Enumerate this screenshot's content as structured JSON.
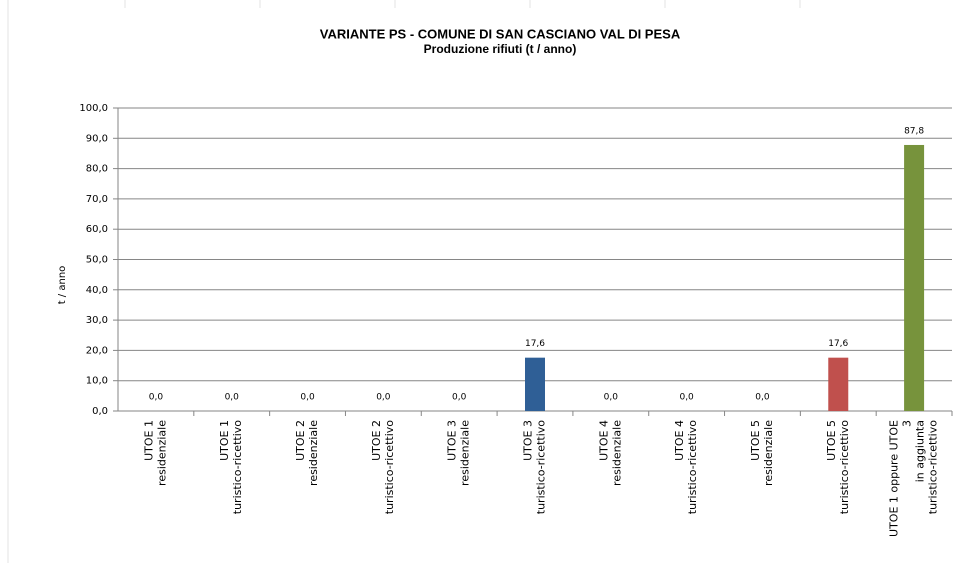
{
  "chart_data": {
    "type": "bar",
    "title": "VARIANTE PS - COMUNE DI SAN CASCIANO VAL DI PESA",
    "subtitle": "Produzione rifiuti  (t / anno)",
    "y_label": "t / anno",
    "categories": [
      [
        "UTOE 1",
        "residenziale"
      ],
      [
        "UTOE 1",
        "turistico-ricettivo"
      ],
      [
        "UTOE 2",
        "residenziale"
      ],
      [
        "UTOE 2",
        "turistico-ricettivo"
      ],
      [
        "UTOE 3",
        "residenziale"
      ],
      [
        "UTOE 3",
        "turistico-ricettivo"
      ],
      [
        "UTOE 4",
        "residenziale"
      ],
      [
        "UTOE 4",
        "turistico-ricettivo"
      ],
      [
        "UTOE 5",
        "residenziale"
      ],
      [
        "UTOE 5",
        "turistico-ricettivo"
      ],
      [
        "UTOE 1 oppure UTOE",
        "3",
        "in aggiunta",
        "turistico-ricettivo"
      ]
    ],
    "values": [
      0,
      0,
      0,
      0,
      0,
      17.6,
      0,
      0,
      0,
      17.6,
      87.8
    ],
    "value_labels": [
      "0,0",
      "0,0",
      "0,0",
      "0,0",
      "0,0",
      "17,6",
      "0,0",
      "0,0",
      "0,0",
      "17,6",
      "87,8"
    ],
    "colors": [
      "#4f81bd",
      "#4f81bd",
      "#4f81bd",
      "#4f81bd",
      "#4f81bd",
      "#2f5f96",
      "#4f81bd",
      "#4f81bd",
      "#4f81bd",
      "#c0504d",
      "#77933c"
    ],
    "ylim": [
      0,
      100
    ],
    "yticks": [
      {
        "value": 0,
        "label": "0,0"
      },
      {
        "value": 10,
        "label": "10,0"
      },
      {
        "value": 20,
        "label": "20,0"
      },
      {
        "value": 30,
        "label": "30,0"
      },
      {
        "value": 40,
        "label": "40,0"
      },
      {
        "value": 50,
        "label": "50,0"
      },
      {
        "value": 60,
        "label": "60,0"
      },
      {
        "value": 70,
        "label": "70,0"
      },
      {
        "value": 80,
        "label": "80,0"
      },
      {
        "value": 90,
        "label": "90,0"
      },
      {
        "value": 100,
        "label": "100,0"
      }
    ],
    "grid": true
  }
}
